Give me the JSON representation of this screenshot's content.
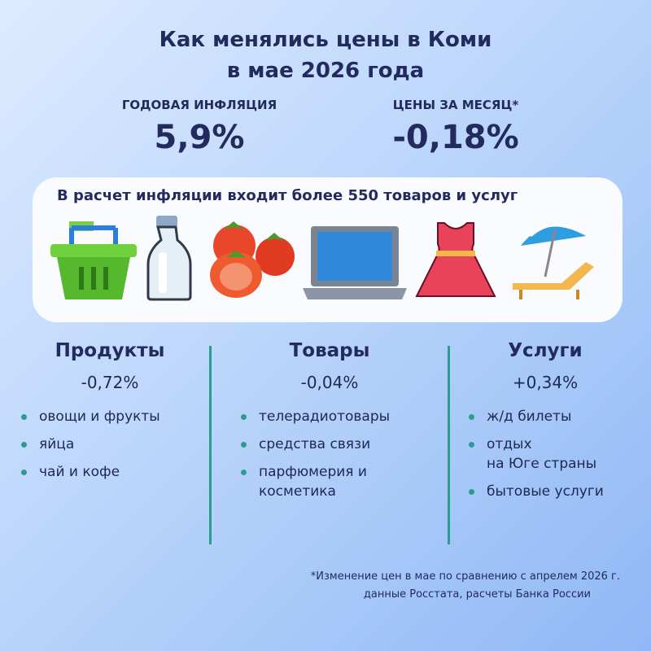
{
  "title": [
    "Как менялись цены в Коми",
    "в мае 2026 года"
  ],
  "stats": [
    {
      "label": "ГОДОВАЯ ИНФЛЯЦИЯ",
      "value": "5,9%"
    },
    {
      "label": "ЦЕНЫ ЗА МЕСЯЦ*",
      "value": "-0,18%"
    }
  ],
  "banner": "В расчет инфляции входит более 550 товаров и услуг",
  "columns": [
    {
      "title": "Продукты",
      "value": "-0,72%",
      "items": [
        [
          "овощи и фрукты"
        ],
        [
          "яйца"
        ],
        [
          "чай и кофе"
        ]
      ]
    },
    {
      "title": "Товары",
      "value": "-0,04%",
      "items": [
        [
          "телерадиотовары"
        ],
        [
          "средства связи"
        ],
        [
          "парфюмерия и",
          "косметика"
        ]
      ]
    },
    {
      "title": "Услуги",
      "value": "+0,34%",
      "items": [
        [
          "ж/д билеты"
        ],
        [
          "отдых",
          "на Юге страны"
        ],
        [
          "бытовые услуги"
        ]
      ]
    }
  ],
  "footnote": [
    "*Изменение цен в мае по сравнению с апрелем 2026 г.",
    "данные Росстата, расчеты Банка России"
  ]
}
